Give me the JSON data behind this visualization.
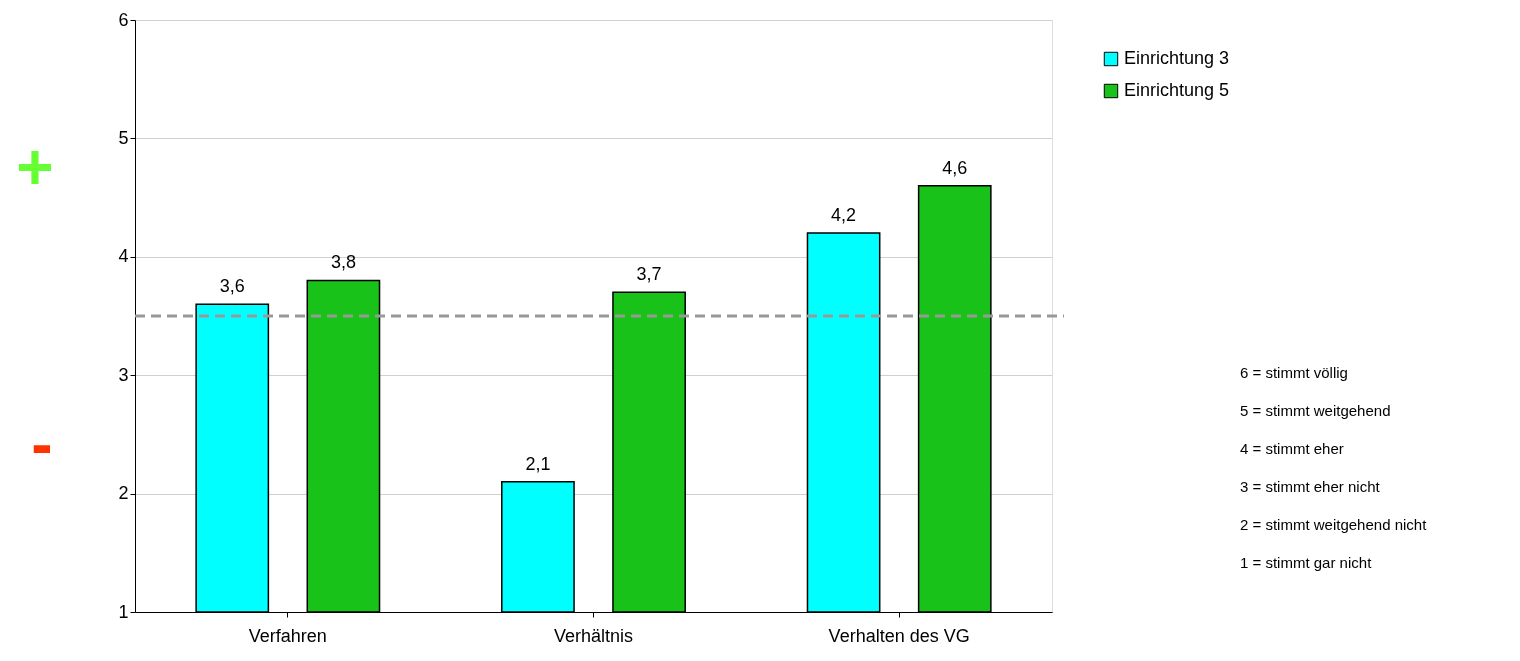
{
  "chart_data": {
    "type": "bar",
    "categories": [
      "Verfahren",
      "Verhältnis",
      "Verhalten des VG"
    ],
    "series": [
      {
        "name": "Einrichtung 3",
        "color": "#00ffff",
        "values": [
          3.6,
          2.1,
          4.2
        ],
        "value_labels": [
          "3,6",
          "2,1",
          "4,2"
        ]
      },
      {
        "name": "Einrichtung 5",
        "color": "#19c219",
        "values": [
          3.8,
          3.7,
          4.6
        ],
        "value_labels": [
          "3,8",
          "3,7",
          "4,6"
        ]
      }
    ],
    "ylim": [
      1,
      6
    ],
    "yticks": [
      1,
      2,
      3,
      4,
      5,
      6
    ],
    "grid": "y",
    "legend": "top right",
    "ref_lines": [
      {
        "axis": "y",
        "value": 3.5,
        "color": "#999999",
        "line_style": "dashed"
      }
    ],
    "annotations": [
      "+",
      "-",
      "6 = stimmt völlig",
      "5 = stimmt weitgehend",
      "4 = stimmt eher",
      "3 = stimmt eher nicht",
      "2 = stimmt weitgehend nicht",
      "1 = stimmt gar nicht"
    ]
  }
}
